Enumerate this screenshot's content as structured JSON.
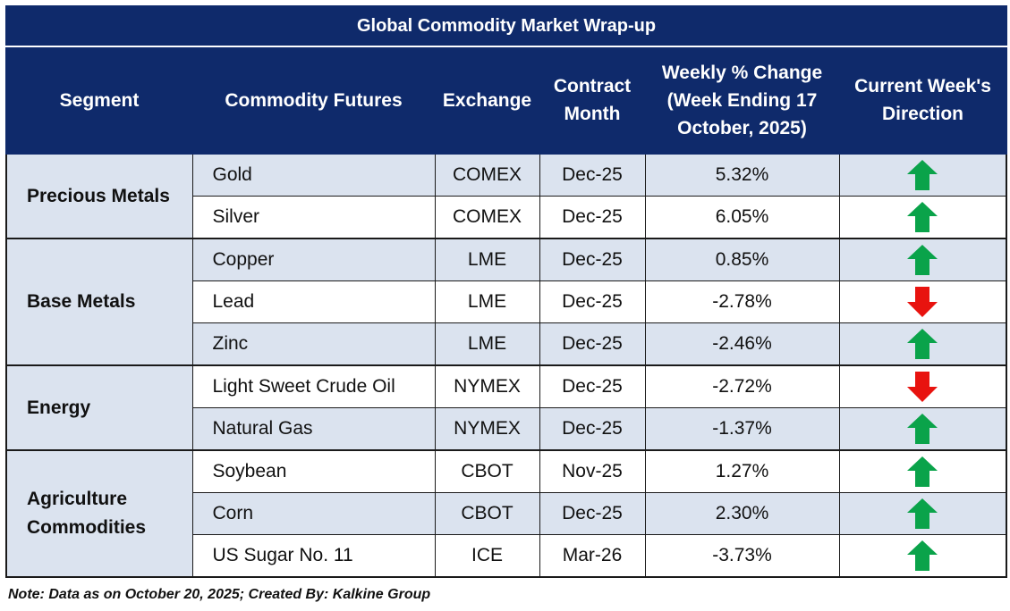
{
  "title": "Global Commodity Market Wrap-up",
  "headers": {
    "segment": "Segment",
    "commodity": "Commodity Futures",
    "exchange": "Exchange",
    "contract_month": "Contract Month",
    "weekly_change": "Weekly % Change (Week Ending  17 October, 2025)",
    "direction": "Current Week's Direction"
  },
  "segments": [
    "Precious Metals",
    "Base Metals",
    "Energy",
    "Agriculture Commodities"
  ],
  "rows": [
    {
      "commodity": "Gold",
      "exchange": "COMEX",
      "month": "Dec-25",
      "change": "5.32%",
      "direction": "up"
    },
    {
      "commodity": "Silver",
      "exchange": "COMEX",
      "month": "Dec-25",
      "change": "6.05%",
      "direction": "up"
    },
    {
      "commodity": "Copper",
      "exchange": "LME",
      "month": "Dec-25",
      "change": "0.85%",
      "direction": "up"
    },
    {
      "commodity": "Lead",
      "exchange": "LME",
      "month": "Dec-25",
      "change": "-2.78%",
      "direction": "down"
    },
    {
      "commodity": "Zinc",
      "exchange": "LME",
      "month": "Dec-25",
      "change": "-2.46%",
      "direction": "up"
    },
    {
      "commodity": "Light Sweet Crude Oil",
      "exchange": "NYMEX",
      "month": "Dec-25",
      "change": "-2.72%",
      "direction": "down"
    },
    {
      "commodity": "Natural Gas",
      "exchange": "NYMEX",
      "month": "Dec-25",
      "change": "-1.37%",
      "direction": "up"
    },
    {
      "commodity": "Soybean",
      "exchange": "CBOT",
      "month": "Nov-25",
      "change": "1.27%",
      "direction": "up"
    },
    {
      "commodity": "Corn",
      "exchange": "CBOT",
      "month": "Dec-25",
      "change": "2.30%",
      "direction": "up"
    },
    {
      "commodity": "US Sugar No. 11",
      "exchange": "ICE",
      "month": "Mar-26",
      "change": "-3.73%",
      "direction": "up"
    }
  ],
  "icons": {
    "up": "arrow-up-icon",
    "down": "arrow-down-icon"
  },
  "colors": {
    "header_bg": "#0f2a6b",
    "row_shade": "#dbe3ef",
    "arrow_up": "#0aa34a",
    "arrow_down": "#e8130f"
  },
  "note": "Note: Data as on October 20, 2025; Created By: Kalkine Group"
}
